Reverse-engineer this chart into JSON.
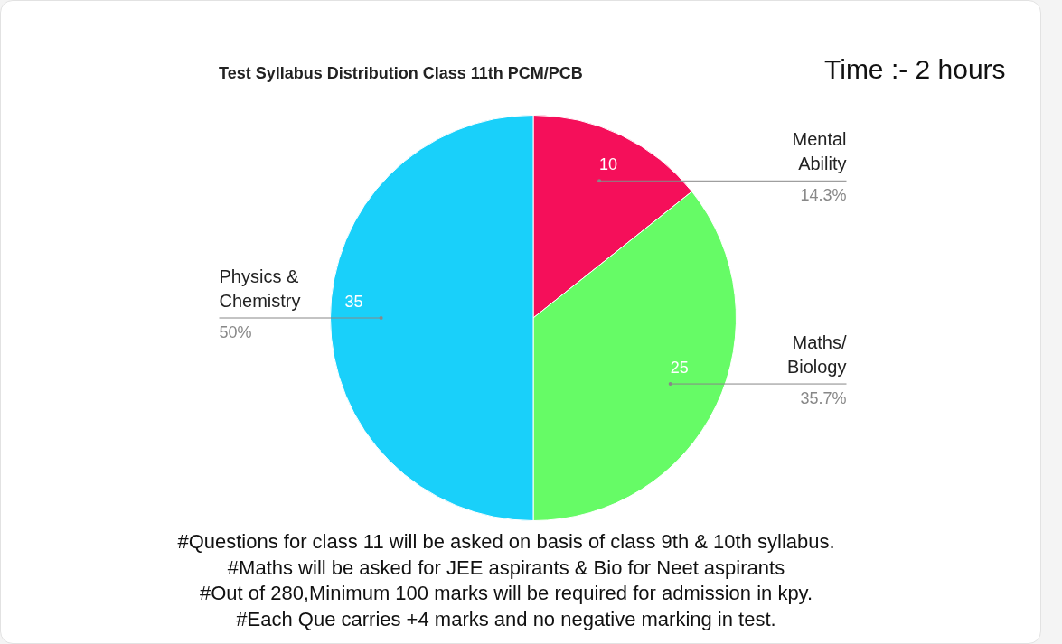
{
  "chart_data": {
    "type": "pie",
    "title": "Test Syllabus Distribution Class 11th PCM/PCB",
    "categories": [
      "Mental Ability",
      "Maths/ Biology",
      "Physics & Chemistry"
    ],
    "values": [
      10,
      25,
      35
    ],
    "colors": [
      "#f50f5a",
      "#66fb66",
      "#19d0fa"
    ],
    "value_labels": [
      "10",
      "25",
      "35"
    ],
    "annotations": [
      "Time :- 2 hours",
      {
        "text": "14.3%",
        "x": "Mental Ability"
      },
      {
        "text": "35.7%",
        "x": "Maths/ Biology"
      },
      {
        "text": "50%",
        "x": "Physics & Chemistry"
      },
      "#Questions for class 11 will be asked on basis of class 9th & 10th syllabus.",
      "#Maths will be asked for JEE aspirants & Bio for Neet aspirants",
      "#Out of 280,Minimum 100 marks will be required for admission in kpy.",
      "#Each Que carries +4 marks and no negative marking in test."
    ]
  }
}
